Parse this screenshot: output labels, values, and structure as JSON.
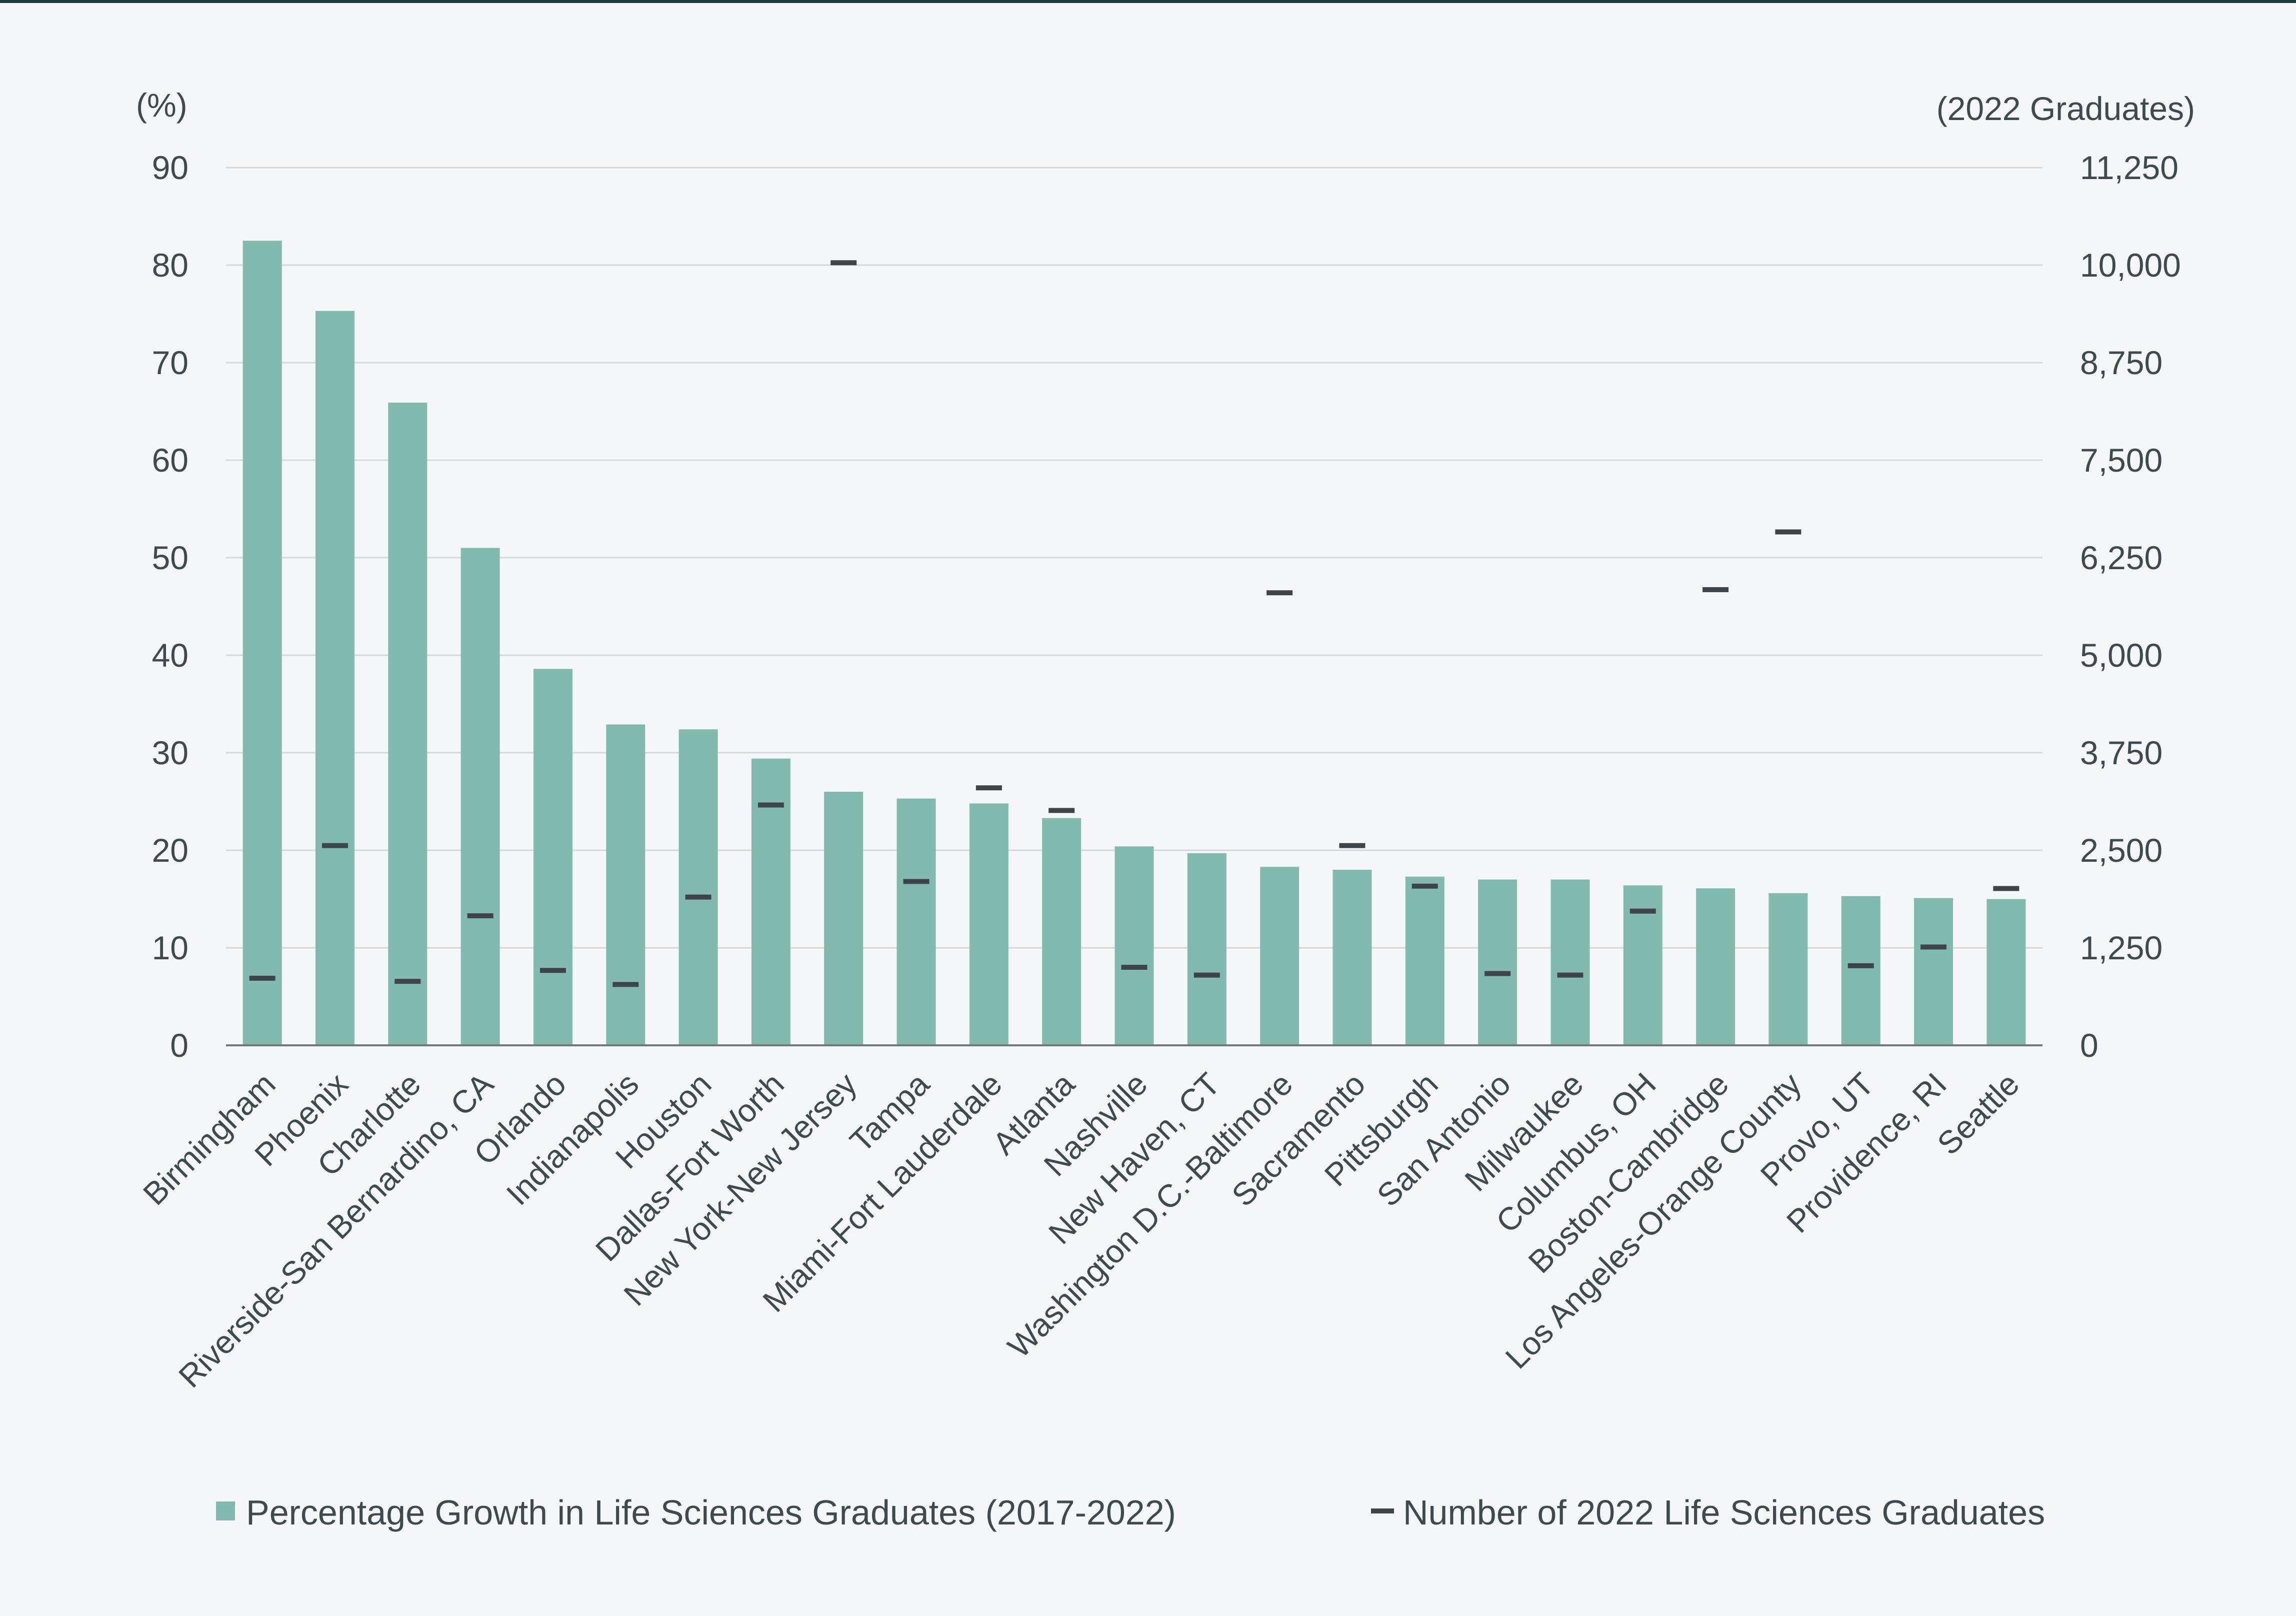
{
  "chart_data": {
    "type": "bar",
    "categories": [
      "Birmingham",
      "Phoenix",
      "Charlotte",
      "Riverside-San Bernardino, CA",
      "Orlando",
      "Indianapolis",
      "Houston",
      "Dallas-Fort Worth",
      "New York-New Jersey",
      "Tampa",
      "Miami-Fort Lauderdale",
      "Atlanta",
      "Nashville",
      "New Haven, CT",
      "Washington D.C.-Baltimore",
      "Sacramento",
      "Pittsburgh",
      "San Antonio",
      "Milwaukee",
      "Columbus, OH",
      "Boston-Cambridge",
      "Los Angeles-Orange County",
      "Provo, UT",
      "Providence, RI",
      "Seattle"
    ],
    "series": [
      {
        "name": "Percentage Growth in Life Sciences Graduates (2017-2022)",
        "axis": "left",
        "color": "#82bbae",
        "values": [
          82.5,
          75.3,
          65.9,
          51.0,
          38.6,
          32.9,
          32.4,
          29.4,
          26.0,
          25.3,
          24.8,
          23.3,
          20.4,
          19.7,
          18.3,
          18.0,
          17.3,
          17.0,
          17.0,
          16.4,
          16.1,
          15.6,
          15.3,
          15.1,
          15.0
        ]
      },
      {
        "name": "Number of 2022 Life Sciences Graduates",
        "axis": "right",
        "color": "#3e4447",
        "values": [
          860,
          2560,
          820,
          1660,
          960,
          780,
          1900,
          3080,
          10030,
          2100,
          3300,
          3010,
          1000,
          900,
          5800,
          2560,
          2040,
          920,
          900,
          1720,
          5840,
          6580,
          1020,
          1260,
          2010
        ]
      }
    ],
    "left_axis": {
      "unit_label": "(%)",
      "ylim": [
        0,
        90
      ],
      "ticks": [
        "0",
        "10",
        "20",
        "30",
        "40",
        "50",
        "60",
        "70",
        "80",
        "90"
      ]
    },
    "right_axis": {
      "unit_label": "(2022 Graduates)",
      "ylim": [
        0,
        11250
      ],
      "ticks": [
        "0",
        "1,250",
        "2,500",
        "3,750",
        "5,000",
        "6,250",
        "7,500",
        "8,750",
        "10,000",
        "11,250"
      ]
    },
    "grid": true,
    "legend": {
      "placement": "bottom",
      "items": [
        "Percentage Growth in Life Sciences Graduates (2017-2022)",
        "Number of 2022 Life Sciences Graduates"
      ]
    }
  }
}
